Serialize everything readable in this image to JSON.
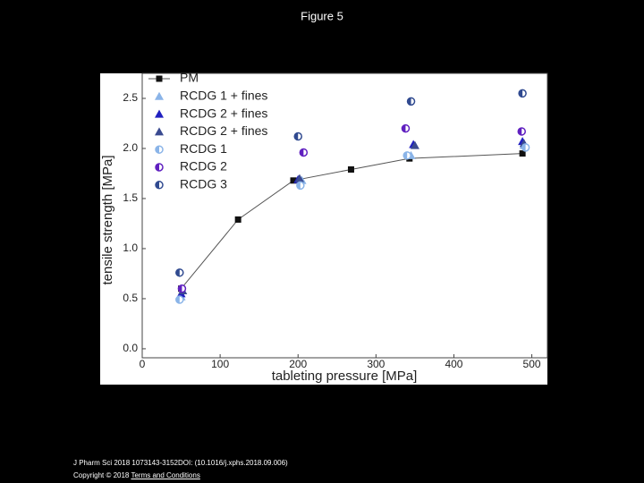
{
  "chart_data": {
    "type": "scatter",
    "title": "Figure 5",
    "x_label": "tableting pressure [MPa]",
    "y_label": "tensile strength [MPa]",
    "xlim": [
      0,
      520
    ],
    "ylim": [
      -0.09,
      2.75
    ],
    "xticks": [
      0,
      100,
      200,
      300,
      400,
      500
    ],
    "yticks": [
      {
        "value": 0,
        "label": "0.0"
      },
      {
        "value": 0.5,
        "label": "0.5"
      },
      {
        "value": 1,
        "label": "1.0"
      },
      {
        "value": 1.5,
        "label": "1.5"
      },
      {
        "value": 2,
        "label": "2.0"
      },
      {
        "value": 2.5,
        "label": "2.5"
      }
    ],
    "legend": "upper left",
    "series": [
      {
        "name": "PM",
        "color": "#111111",
        "marker": "square",
        "line": true,
        "x": [
          50,
          123,
          194,
          268,
          343,
          488
        ],
        "values": [
          0.6,
          1.29,
          1.68,
          1.79,
          1.9,
          1.95
        ]
      },
      {
        "name": "RCDG 1 + fines",
        "color": "#8ab4e8",
        "marker": "triangle",
        "line": false,
        "x": [
          50,
          205,
          345,
          490
        ],
        "values": [
          0.52,
          1.68,
          1.93,
          2.03
        ]
      },
      {
        "name": "RCDG 2 + fines",
        "color": "#2020c0",
        "marker": "triangle",
        "line": false,
        "x": [
          50,
          200,
          348,
          488
        ],
        "values": [
          0.55,
          1.69,
          2.04,
          2.07
        ]
      },
      {
        "name": "RCDG 2 + fines",
        "color": "#3a4a90",
        "marker": "triangle",
        "line": false,
        "x": [
          52,
          202,
          350,
          490
        ],
        "values": [
          0.58,
          1.7,
          2.03,
          2.05
        ]
      },
      {
        "name": "RCDG 1",
        "color": "#8ab4e8",
        "marker": "half-circle",
        "line": false,
        "x": [
          48,
          203,
          340,
          492
        ],
        "values": [
          0.49,
          1.63,
          1.93,
          2.01
        ]
      },
      {
        "name": "RCDG 2",
        "color": "#6020c0",
        "marker": "half-circle",
        "line": false,
        "x": [
          51,
          207,
          338,
          487
        ],
        "values": [
          0.6,
          1.96,
          2.2,
          2.17
        ]
      },
      {
        "name": "RCDG 3",
        "color": "#304a90",
        "marker": "half-circle",
        "line": false,
        "x": [
          48,
          200,
          345,
          488
        ],
        "values": [
          0.76,
          2.12,
          2.47,
          2.55
        ]
      }
    ]
  },
  "footer": {
    "citation": "J Pharm Sci 2018 1073143-3152DOI: (10.1016/j.xphs.2018.09.006)",
    "copyright": "Copyright © 2018",
    "link": "Terms and Conditions"
  }
}
